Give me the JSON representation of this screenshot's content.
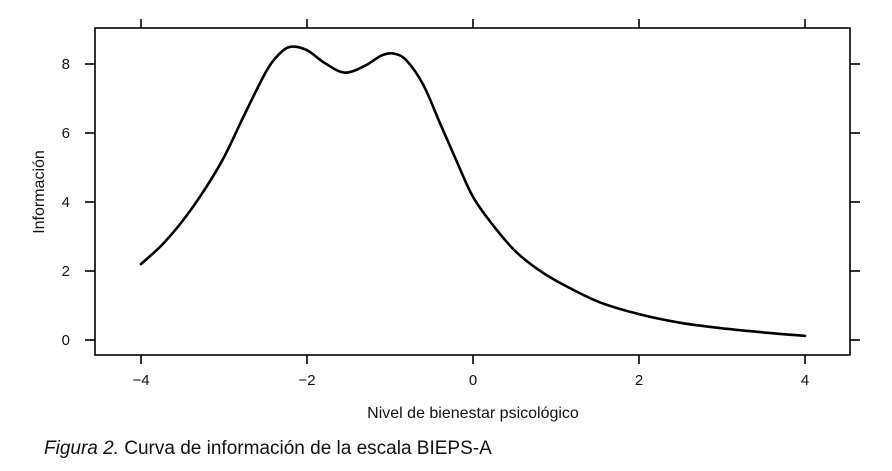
{
  "chart_data": {
    "type": "line",
    "title": "",
    "xlabel": "Nivel de bienestar psicológico",
    "ylabel": "Información",
    "xlim": [
      -4.6,
      4.55
    ],
    "ylim": [
      -0.45,
      9.0
    ],
    "x_ticks": [
      -4,
      -2,
      0,
      2,
      4
    ],
    "x_tick_labels": [
      "−4",
      "−2",
      "0",
      "2",
      "4"
    ],
    "y_ticks": [
      0,
      2,
      4,
      6,
      8
    ],
    "y_tick_labels": [
      "0",
      "2",
      "4",
      "6",
      "8"
    ],
    "grid": false,
    "legend": null,
    "series": [
      {
        "name": "Información",
        "x": [
          -4.0,
          -3.75,
          -3.5,
          -3.25,
          -3.0,
          -2.75,
          -2.5,
          -2.35,
          -2.2,
          -2.0,
          -1.8,
          -1.55,
          -1.3,
          -1.1,
          -0.95,
          -0.8,
          -0.6,
          -0.4,
          -0.2,
          0.0,
          0.25,
          0.5,
          0.75,
          1.0,
          1.5,
          2.0,
          2.5,
          3.0,
          3.5,
          4.0
        ],
        "values": [
          2.2,
          2.75,
          3.45,
          4.3,
          5.3,
          6.55,
          7.75,
          8.25,
          8.5,
          8.4,
          8.05,
          7.75,
          7.95,
          8.25,
          8.3,
          8.1,
          7.4,
          6.3,
          5.2,
          4.15,
          3.3,
          2.6,
          2.1,
          1.72,
          1.12,
          0.75,
          0.5,
          0.34,
          0.22,
          0.12
        ]
      }
    ]
  },
  "caption": {
    "prefix": "Figura 2.",
    "text": " Curva de información de la escala BIEPS-A"
  }
}
